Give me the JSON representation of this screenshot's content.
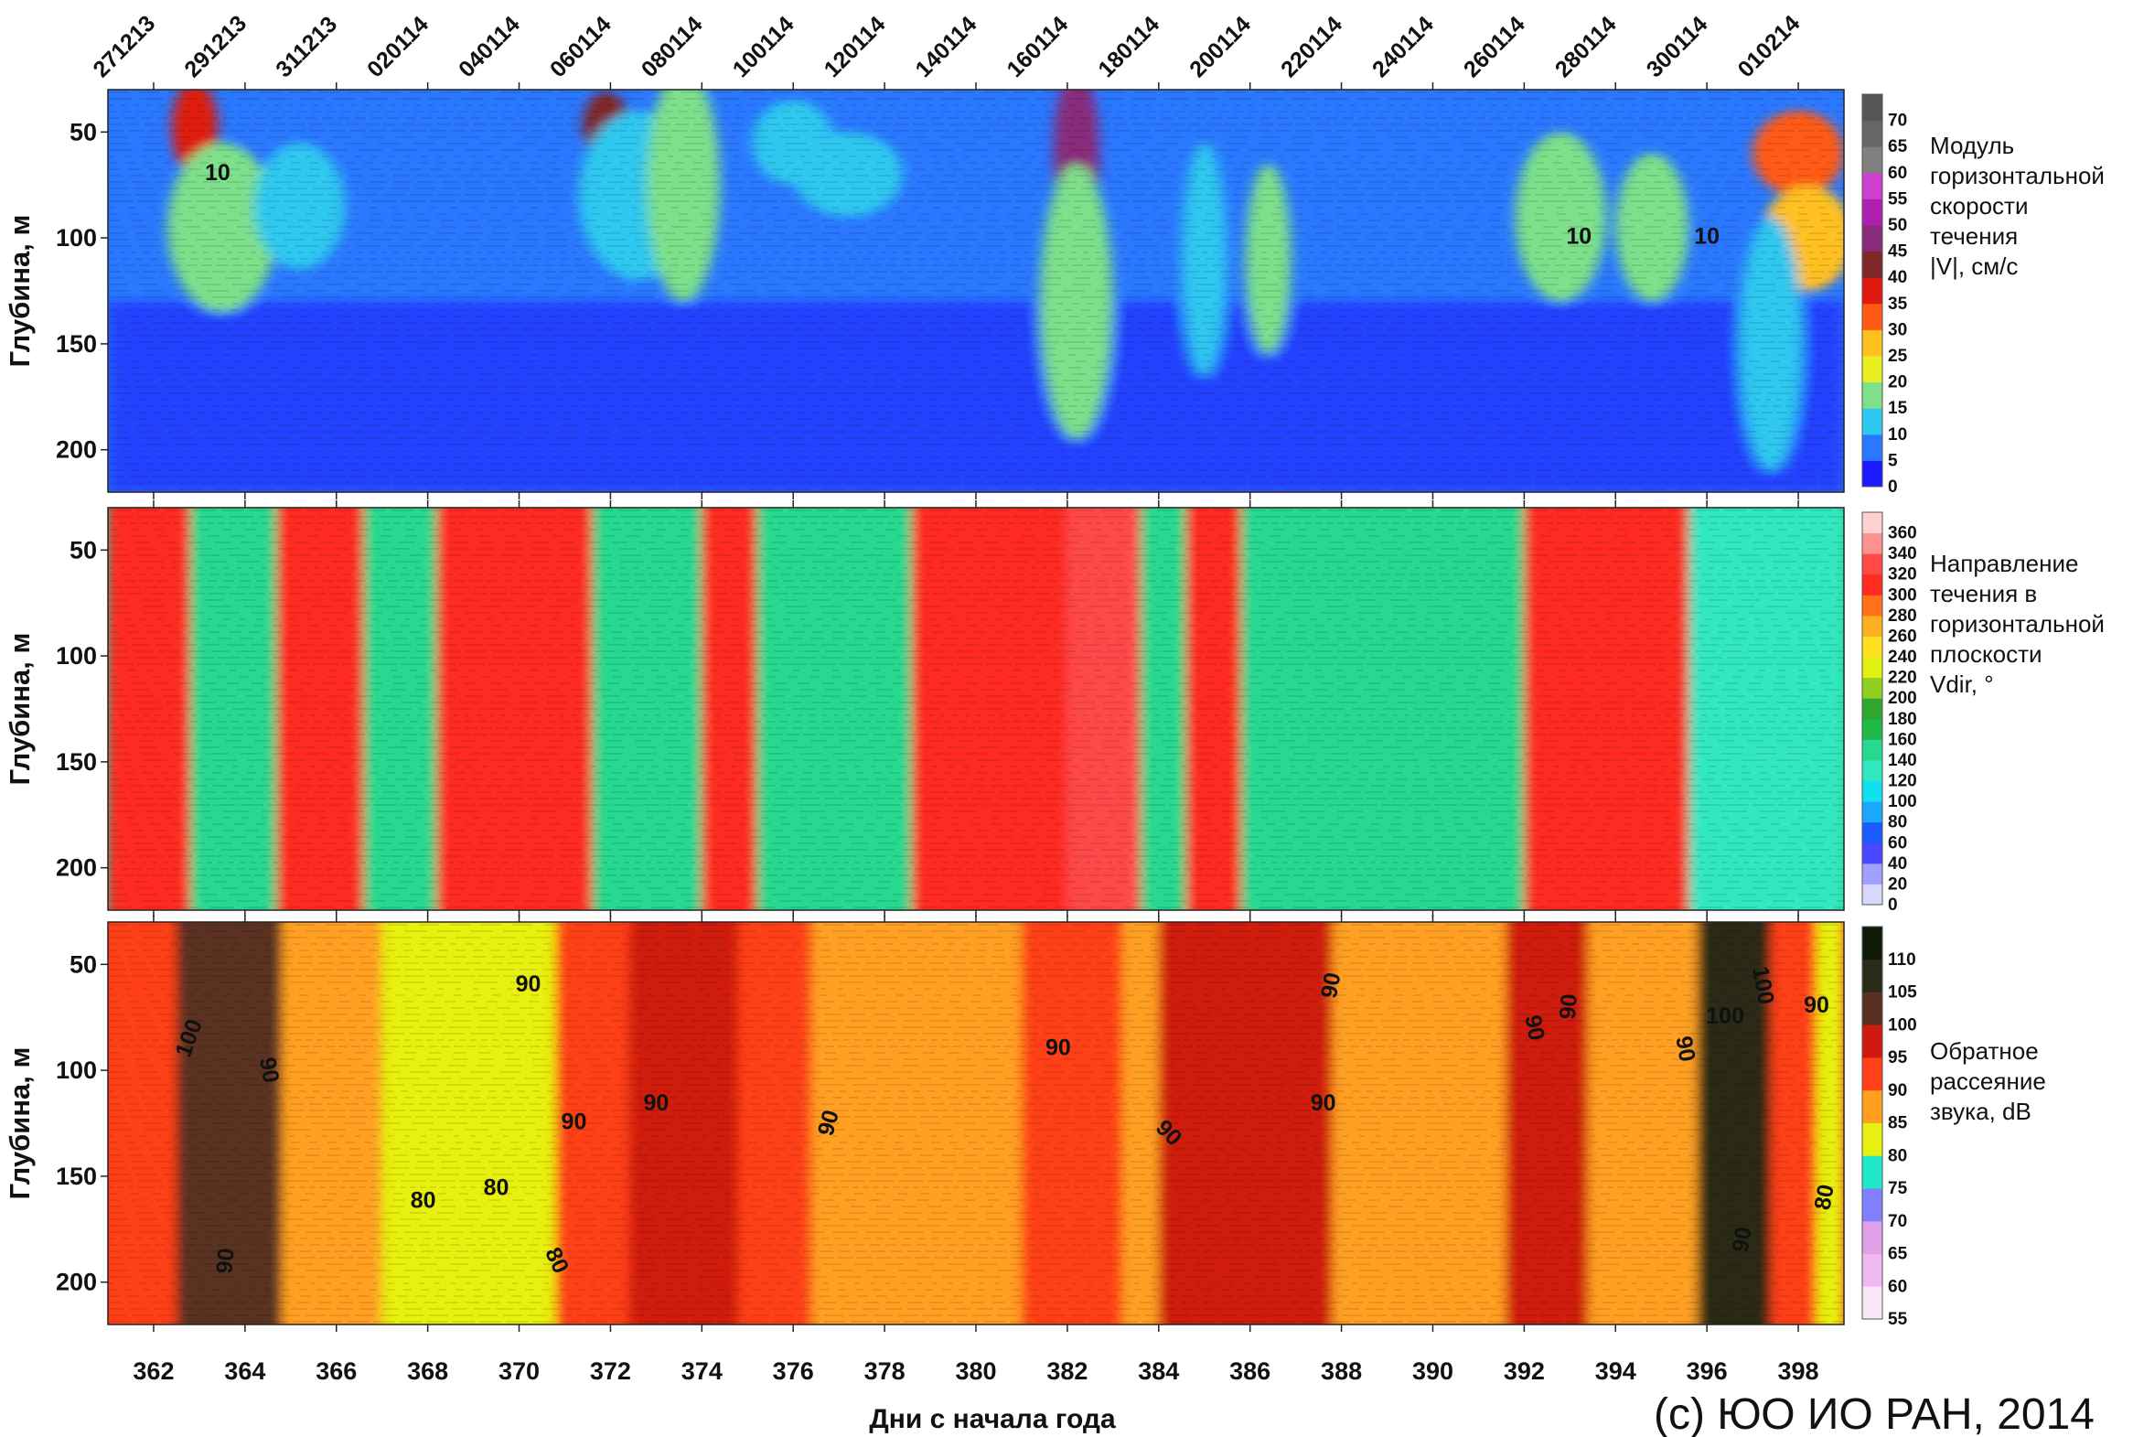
{
  "chart_data": {
    "type": "heatmap",
    "x_range": [
      361,
      399
    ],
    "x_ticks": [
      362,
      364,
      366,
      368,
      370,
      372,
      374,
      376,
      378,
      380,
      382,
      384,
      386,
      388,
      390,
      392,
      394,
      396,
      398
    ],
    "xlabel": "Дни с начала года",
    "date_ticks": [
      {
        "label": "271213",
        "day": 361
      },
      {
        "label": "291213",
        "day": 363
      },
      {
        "label": "311213",
        "day": 365
      },
      {
        "label": "020114",
        "day": 367
      },
      {
        "label": "040114",
        "day": 369
      },
      {
        "label": "060114",
        "day": 371
      },
      {
        "label": "080114",
        "day": 373
      },
      {
        "label": "100114",
        "day": 375
      },
      {
        "label": "120114",
        "day": 377
      },
      {
        "label": "140114",
        "day": 379
      },
      {
        "label": "160114",
        "day": 381
      },
      {
        "label": "180114",
        "day": 383
      },
      {
        "label": "200114",
        "day": 385
      },
      {
        "label": "220114",
        "day": 387
      },
      {
        "label": "240114",
        "day": 389
      },
      {
        "label": "260114",
        "day": 391
      },
      {
        "label": "280114",
        "day": 393
      },
      {
        "label": "300114",
        "day": 395
      },
      {
        "label": "010214",
        "day": 397
      }
    ],
    "panels": [
      {
        "name": "speed",
        "ylabel": "Глубина, м",
        "y_range": [
          30,
          220
        ],
        "y_ticks": [
          50,
          100,
          150,
          200
        ],
        "colorbar": {
          "title_lines": [
            "Модуль",
            "горизонтальной",
            "скорости",
            "течения",
            "|V|, см/с"
          ],
          "ticks": [
            0,
            5,
            10,
            15,
            20,
            25,
            30,
            35,
            40,
            45,
            50,
            55,
            60,
            65,
            70
          ],
          "colors": [
            "#1a1aff",
            "#2a78ff",
            "#2ec8f0",
            "#7ee08a",
            "#e8f020",
            "#ffc020",
            "#ff5a14",
            "#e01a10",
            "#802828",
            "#8a2a7a",
            "#b020b0",
            "#d040d0",
            "#808080",
            "#666666",
            "#555555"
          ]
        },
        "contour_labels": [
          {
            "text": "10",
            "day": 363.4,
            "depth": 70,
            "rot": 0
          },
          {
            "text": "10",
            "day": 393.2,
            "depth": 100,
            "rot": 0
          },
          {
            "text": "10",
            "day": 396.0,
            "depth": 100,
            "rot": 0
          }
        ],
        "features": [
          {
            "day": 362.9,
            "depth": 48,
            "w": 0.5,
            "d": 22,
            "value": 38
          },
          {
            "day": 363.5,
            "depth": 95,
            "w": 1.2,
            "d": 40,
            "value": 15
          },
          {
            "day": 365.2,
            "depth": 85,
            "w": 1.0,
            "d": 30,
            "value": 13
          },
          {
            "day": 371.9,
            "depth": 47,
            "w": 0.5,
            "d": 16,
            "value": 40
          },
          {
            "day": 372.6,
            "depth": 80,
            "w": 1.3,
            "d": 40,
            "value": 14
          },
          {
            "day": 373.6,
            "depth": 75,
            "w": 0.8,
            "d": 55,
            "value": 15
          },
          {
            "day": 376.0,
            "depth": 55,
            "w": 0.9,
            "d": 20,
            "value": 14
          },
          {
            "day": 377.2,
            "depth": 70,
            "w": 1.2,
            "d": 20,
            "value": 12
          },
          {
            "day": 382.2,
            "depth": 60,
            "w": 0.5,
            "d": 40,
            "value": 48
          },
          {
            "day": 382.2,
            "depth": 130,
            "w": 0.8,
            "d": 65,
            "value": 15
          },
          {
            "day": 385.0,
            "depth": 110,
            "w": 0.5,
            "d": 55,
            "value": 13
          },
          {
            "day": 386.4,
            "depth": 110,
            "w": 0.5,
            "d": 45,
            "value": 15
          },
          {
            "day": 392.8,
            "depth": 90,
            "w": 1.0,
            "d": 40,
            "value": 15
          },
          {
            "day": 394.8,
            "depth": 95,
            "w": 0.8,
            "d": 35,
            "value": 15
          },
          {
            "day": 398.0,
            "depth": 60,
            "w": 1.0,
            "d": 20,
            "value": 30
          },
          {
            "day": 398.2,
            "depth": 100,
            "w": 1.0,
            "d": 25,
            "value": 28
          },
          {
            "day": 397.4,
            "depth": 150,
            "w": 0.7,
            "d": 60,
            "value": 12
          }
        ]
      },
      {
        "name": "direction",
        "ylabel": "Глубина, м",
        "y_range": [
          30,
          220
        ],
        "y_ticks": [
          50,
          100,
          150,
          200
        ],
        "colorbar": {
          "title_lines": [
            "Направление",
            "течения в",
            "горизонтальной",
            "плоскости",
            "Vdir, °"
          ],
          "ticks": [
            0,
            20,
            40,
            60,
            80,
            100,
            120,
            140,
            160,
            180,
            200,
            220,
            240,
            260,
            280,
            300,
            320,
            340,
            360
          ],
          "colors": [
            "#d8d8ff",
            "#a0a0ff",
            "#4848ff",
            "#1a5aff",
            "#1aa8ff",
            "#10e0f0",
            "#30e8c0",
            "#28d890",
            "#20b848",
            "#30a830",
            "#90d020",
            "#e0f010",
            "#ffe020",
            "#ffb020",
            "#ff7018",
            "#ff2a20",
            "#ff4848",
            "#ff9090",
            "#ffd0d0"
          ]
        },
        "contour_labels": [],
        "bands": [
          {
            "from": 361.0,
            "to": 362.8,
            "value": 300
          },
          {
            "from": 362.8,
            "to": 364.7,
            "value": 140
          },
          {
            "from": 364.7,
            "to": 366.6,
            "value": 300
          },
          {
            "from": 366.6,
            "to": 368.2,
            "value": 140
          },
          {
            "from": 368.2,
            "to": 371.6,
            "value": 300
          },
          {
            "from": 371.6,
            "to": 374.0,
            "value": 150
          },
          {
            "from": 374.0,
            "to": 375.2,
            "value": 300
          },
          {
            "from": 375.2,
            "to": 378.6,
            "value": 140
          },
          {
            "from": 378.6,
            "to": 382.0,
            "value": 300
          },
          {
            "from": 382.0,
            "to": 383.6,
            "value": 320
          },
          {
            "from": 383.6,
            "to": 384.6,
            "value": 140
          },
          {
            "from": 384.6,
            "to": 385.8,
            "value": 300
          },
          {
            "from": 385.8,
            "to": 389.8,
            "value": 140
          },
          {
            "from": 389.8,
            "to": 392.0,
            "value": 140
          },
          {
            "from": 392.0,
            "to": 395.6,
            "value": 300
          },
          {
            "from": 395.6,
            "to": 399.0,
            "value": 120
          }
        ]
      },
      {
        "name": "backscatter",
        "ylabel": "Глубина, м",
        "y_range": [
          30,
          220
        ],
        "y_ticks": [
          50,
          100,
          150,
          200
        ],
        "colorbar": {
          "title_lines": [
            "Обратное",
            "рассеяние",
            "звука, dB"
          ],
          "ticks": [
            55,
            60,
            65,
            70,
            75,
            80,
            85,
            90,
            95,
            100,
            105,
            110
          ],
          "colors": [
            "#f8e8f8",
            "#f0b8f0",
            "#e0a0e8",
            "#8080ff",
            "#20e8c8",
            "#e8f010",
            "#ffa020",
            "#ff4018",
            "#d01a10",
            "#5a3020",
            "#2a2a18",
            "#101a08"
          ]
        },
        "contour_labels": [
          {
            "text": "100",
            "day": 362.8,
            "depth": 85,
            "rot": -70
          },
          {
            "text": "90",
            "day": 363.6,
            "depth": 190,
            "rot": -85
          },
          {
            "text": "90",
            "day": 364.5,
            "depth": 100,
            "rot": 80
          },
          {
            "text": "90",
            "day": 370.2,
            "depth": 60,
            "rot": 0
          },
          {
            "text": "80",
            "day": 367.9,
            "depth": 162,
            "rot": 0
          },
          {
            "text": "80",
            "day": 369.5,
            "depth": 156,
            "rot": 0
          },
          {
            "text": "80",
            "day": 370.8,
            "depth": 190,
            "rot": 65
          },
          {
            "text": "90",
            "day": 371.2,
            "depth": 125,
            "rot": 0
          },
          {
            "text": "90",
            "day": 373.0,
            "depth": 116,
            "rot": 0
          },
          {
            "text": "90",
            "day": 376.8,
            "depth": 125,
            "rot": -75
          },
          {
            "text": "90",
            "day": 381.8,
            "depth": 90,
            "rot": 0
          },
          {
            "text": "90",
            "day": 384.2,
            "depth": 130,
            "rot": 45
          },
          {
            "text": "90",
            "day": 387.8,
            "depth": 60,
            "rot": -80
          },
          {
            "text": "90",
            "day": 387.6,
            "depth": 116,
            "rot": 0
          },
          {
            "text": "90",
            "day": 392.2,
            "depth": 80,
            "rot": 80
          },
          {
            "text": "90",
            "day": 393.0,
            "depth": 70,
            "rot": -85
          },
          {
            "text": "90",
            "day": 395.5,
            "depth": 90,
            "rot": 80
          },
          {
            "text": "100",
            "day": 396.4,
            "depth": 75,
            "rot": 0
          },
          {
            "text": "100",
            "day": 397.2,
            "depth": 60,
            "rot": 80
          },
          {
            "text": "90",
            "day": 396.8,
            "depth": 180,
            "rot": -80
          },
          {
            "text": "90",
            "day": 398.4,
            "depth": 70,
            "rot": 0
          },
          {
            "text": "80",
            "day": 398.6,
            "depth": 160,
            "rot": -80
          }
        ],
        "bands": [
          {
            "from": 361.0,
            "to": 362.5,
            "value": 92
          },
          {
            "from": 362.5,
            "to": 364.8,
            "value": 101
          },
          {
            "from": 364.8,
            "to": 367.0,
            "value": 88
          },
          {
            "from": 367.0,
            "to": 370.8,
            "value": 84
          },
          {
            "from": 370.8,
            "to": 372.4,
            "value": 91
          },
          {
            "from": 372.4,
            "to": 374.8,
            "value": 95
          },
          {
            "from": 374.8,
            "to": 376.4,
            "value": 93
          },
          {
            "from": 376.4,
            "to": 381.0,
            "value": 88
          },
          {
            "from": 381.0,
            "to": 383.2,
            "value": 91
          },
          {
            "from": 383.2,
            "to": 384.0,
            "value": 89
          },
          {
            "from": 384.0,
            "to": 387.8,
            "value": 95
          },
          {
            "from": 387.8,
            "to": 391.6,
            "value": 89
          },
          {
            "from": 391.6,
            "to": 393.4,
            "value": 95
          },
          {
            "from": 393.4,
            "to": 395.8,
            "value": 89
          },
          {
            "from": 395.8,
            "to": 397.4,
            "value": 106
          },
          {
            "from": 397.4,
            "to": 398.4,
            "value": 91
          },
          {
            "from": 398.4,
            "to": 399.0,
            "value": 80
          }
        ]
      }
    ]
  },
  "copyright": "(c) ЮО ИО РАН, 2014"
}
